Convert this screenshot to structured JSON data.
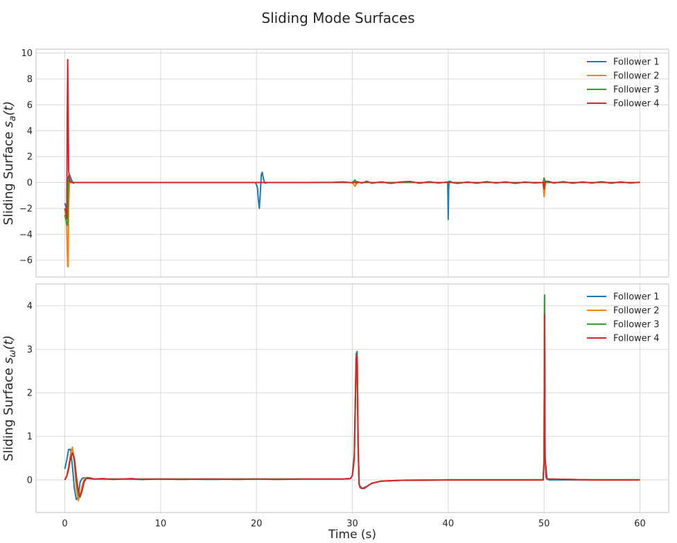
{
  "figure": {
    "title": "Sliding Mode Surfaces"
  },
  "chart_data": [
    {
      "type": "line",
      "title": "",
      "ylabel_main": "Sliding Surface ",
      "ylabel_symbol": "s",
      "ylabel_subscript": "a",
      "ylabel_arg": "(t)",
      "xlabel": "",
      "xlim": [
        -3,
        63
      ],
      "ylim": [
        -7.3,
        10.3
      ],
      "xticks": [
        0,
        10,
        20,
        30,
        40,
        50,
        60
      ],
      "yticks": [
        -6,
        -4,
        -2,
        0,
        2,
        4,
        6,
        8,
        10
      ],
      "grid": true,
      "legend_position": "top-right",
      "series": [
        {
          "name": "Follower 1",
          "color": "#1f77b4",
          "x": [
            0,
            0.1,
            0.2,
            0.3,
            0.4,
            0.5,
            0.6,
            0.7,
            0.8,
            0.9,
            1.0,
            1.2,
            1.5,
            2,
            5,
            10,
            15,
            19.9,
            20.1,
            20.2,
            20.3,
            20.4,
            20.5,
            20.6,
            20.7,
            20.8,
            20.9,
            21.1,
            21.5,
            25,
            30,
            35,
            39.8,
            39.95,
            40.0,
            40.05,
            40.1,
            40.2,
            40.4,
            45,
            50,
            55,
            60
          ],
          "y": [
            -1.6,
            -1.8,
            -2.2,
            0.2,
            0.5,
            0.6,
            0.4,
            0.2,
            0.05,
            -0.05,
            0,
            0,
            0,
            0,
            0,
            0,
            0,
            0,
            -0.4,
            -1.4,
            -2.0,
            -0.8,
            0.6,
            0.8,
            0.4,
            0.1,
            -0.05,
            0,
            0,
            0,
            0,
            0,
            0,
            0,
            -2.85,
            -0.5,
            0.1,
            0.1,
            0,
            0,
            0,
            0,
            0
          ]
        },
        {
          "name": "Follower 2",
          "color": "#ff7f0e",
          "x": [
            0,
            0.1,
            0.2,
            0.3,
            0.35,
            0.4,
            0.5,
            0.6,
            0.7,
            0.9,
            1.2,
            2,
            10,
            20,
            30,
            30.3,
            30.4,
            30.5,
            30.7,
            31,
            35,
            40,
            45,
            49.9,
            50.0,
            50.1,
            50.2,
            50.4,
            55,
            60
          ],
          "y": [
            -2.0,
            -2.5,
            -3.5,
            -6.5,
            -6.5,
            -2.0,
            0.3,
            0.1,
            0,
            0,
            0,
            0,
            0,
            0,
            0,
            -0.3,
            -0.1,
            0.05,
            0,
            0,
            0,
            0,
            0,
            0,
            -1.1,
            -0.3,
            0.1,
            0,
            0,
            0
          ]
        },
        {
          "name": "Follower 3",
          "color": "#2ca02c",
          "x": [
            0,
            0.1,
            0.2,
            0.3,
            0.35,
            0.4,
            0.5,
            0.6,
            0.8,
            1.2,
            2,
            10,
            20,
            30,
            30.2,
            30.3,
            30.4,
            30.6,
            31,
            40,
            49.9,
            50.0,
            50.1,
            50.2,
            50.4,
            55,
            60
          ],
          "y": [
            -2.5,
            -2.8,
            -3.2,
            -3.3,
            -1.0,
            0.3,
            0.2,
            0.1,
            0,
            0,
            0,
            0,
            0,
            0,
            0.15,
            0.2,
            -0.1,
            0,
            0,
            0,
            0,
            0.35,
            0.1,
            0,
            0,
            0,
            0
          ]
        },
        {
          "name": "Follower 4",
          "color": "#d62728",
          "x": [
            0,
            0.1,
            0.2,
            0.25,
            0.3,
            0.35,
            0.4,
            0.5,
            0.6,
            0.8,
            1.2,
            2,
            5,
            10,
            15,
            20,
            25,
            28,
            29,
            30,
            30.5,
            31,
            31.5,
            32,
            33,
            34,
            35,
            36,
            37,
            38,
            39,
            40,
            41,
            42,
            43,
            44,
            45,
            46,
            47,
            48,
            49,
            49.9,
            50.0,
            50.1,
            50.5,
            51,
            52,
            53,
            54,
            55,
            56,
            57,
            58,
            59,
            60
          ],
          "y": [
            -2.0,
            -2.2,
            -2.8,
            5.0,
            9.5,
            6.0,
            1.0,
            0.1,
            0,
            0,
            0,
            0,
            0,
            0,
            0,
            0,
            0,
            0.02,
            0.05,
            -0.02,
            0.06,
            -0.04,
            0.1,
            -0.05,
            0.05,
            -0.06,
            0.04,
            0.08,
            -0.05,
            0.06,
            -0.04,
            0.05,
            -0.06,
            0.04,
            -0.05,
            0.06,
            -0.04,
            0.05,
            -0.06,
            0.04,
            -0.03,
            0,
            -0.5,
            0.1,
            0.08,
            -0.04,
            0.06,
            -0.05,
            0.05,
            -0.04,
            0.06,
            -0.05,
            0.05,
            -0.04,
            0.03
          ]
        }
      ]
    },
    {
      "type": "line",
      "title": "",
      "ylabel_main": "Sliding Surface ",
      "ylabel_symbol": "s",
      "ylabel_subscript": "ω",
      "ylabel_arg": "(t)",
      "xlabel": "Time (s)",
      "xlim": [
        -3,
        63
      ],
      "ylim": [
        -0.75,
        4.5
      ],
      "xticks": [
        0,
        10,
        20,
        30,
        40,
        50,
        60
      ],
      "yticks": [
        0,
        1,
        2,
        3,
        4
      ],
      "grid": true,
      "legend_position": "top-right",
      "series": [
        {
          "name": "Follower 1",
          "color": "#1f77b4",
          "x": [
            0,
            0.2,
            0.4,
            0.6,
            0.8,
            1.0,
            1.2,
            1.4,
            1.6,
            1.8,
            2.0,
            2.4,
            3,
            4,
            6,
            8,
            10,
            15,
            20,
            25,
            29,
            29.8,
            30.0,
            30.2,
            30.4,
            30.5,
            30.6,
            30.7,
            30.8,
            31.0,
            31.5,
            32,
            33,
            35,
            40,
            45,
            49.9,
            50.0,
            50.05,
            50.1,
            50.2,
            50.5,
            55,
            60
          ],
          "y": [
            0.25,
            0.45,
            0.7,
            0.7,
            0.3,
            -0.2,
            -0.45,
            -0.4,
            -0.05,
            0.03,
            0.05,
            0.03,
            0.02,
            0.02,
            0.02,
            0.01,
            0.02,
            0.01,
            0.02,
            0.02,
            0.02,
            0.03,
            0.1,
            0.6,
            2.9,
            2.95,
            1.0,
            -0.1,
            -0.18,
            -0.2,
            -0.15,
            -0.08,
            -0.03,
            -0.01,
            0,
            0,
            0,
            0.5,
            4.2,
            0.6,
            0.05,
            0,
            0,
            0
          ]
        },
        {
          "name": "Follower 2",
          "color": "#ff7f0e",
          "x": [
            0,
            0.2,
            0.4,
            0.6,
            0.8,
            1.0,
            1.2,
            1.4,
            1.6,
            1.8,
            2.0,
            2.2,
            2.5,
            3,
            4,
            6,
            10,
            20,
            29,
            29.8,
            30.0,
            30.2,
            30.4,
            30.5,
            30.6,
            30.7,
            30.9,
            31.2,
            32,
            33,
            35,
            40,
            49.9,
            50.0,
            50.05,
            50.1,
            50.3,
            55,
            60
          ],
          "y": [
            0,
            0.1,
            0.3,
            0.6,
            0.75,
            0.4,
            -0.2,
            -0.48,
            -0.35,
            -0.15,
            0.0,
            0.05,
            0.04,
            0.02,
            0.02,
            0.02,
            0.02,
            0.02,
            0.02,
            0.03,
            0.1,
            0.5,
            2.85,
            2.9,
            0.8,
            -0.1,
            -0.18,
            -0.2,
            -0.08,
            -0.03,
            -0.01,
            0,
            0,
            0.4,
            4.1,
            0.5,
            0.02,
            0,
            0
          ]
        },
        {
          "name": "Follower 3",
          "color": "#2ca02c",
          "x": [
            0,
            0.2,
            0.4,
            0.6,
            0.8,
            1.0,
            1.2,
            1.4,
            1.6,
            1.8,
            2.0,
            2.3,
            2.6,
            3,
            4,
            6,
            10,
            20,
            29,
            29.8,
            30.0,
            30.2,
            30.4,
            30.5,
            30.6,
            30.7,
            30.9,
            31.2,
            32,
            33,
            35,
            40,
            49.9,
            50.0,
            50.05,
            50.1,
            50.3,
            55,
            60
          ],
          "y": [
            0,
            0.08,
            0.25,
            0.5,
            0.62,
            0.45,
            0.0,
            -0.3,
            -0.4,
            -0.25,
            -0.05,
            0.05,
            0.05,
            0.02,
            0.02,
            0.02,
            0.02,
            0.02,
            0.02,
            0.03,
            0.1,
            0.5,
            2.85,
            2.9,
            0.8,
            -0.1,
            -0.18,
            -0.2,
            -0.08,
            -0.03,
            -0.01,
            0,
            0,
            0.4,
            4.25,
            0.5,
            0.02,
            0,
            0
          ]
        },
        {
          "name": "Follower 4",
          "color": "#d62728",
          "x": [
            0,
            0.2,
            0.4,
            0.6,
            0.8,
            1.0,
            1.2,
            1.4,
            1.6,
            1.8,
            2.0,
            2.3,
            2.6,
            3,
            4,
            5,
            6,
            7,
            8,
            10,
            12,
            15,
            18,
            20,
            22,
            25,
            28,
            29,
            29.8,
            30.0,
            30.2,
            30.4,
            30.5,
            30.6,
            30.7,
            30.9,
            31.2,
            32,
            33,
            35,
            40,
            45,
            49.9,
            50.0,
            50.05,
            50.1,
            50.3,
            55,
            60
          ],
          "y": [
            0,
            0.08,
            0.25,
            0.5,
            0.62,
            0.5,
            0.1,
            -0.25,
            -0.38,
            -0.25,
            -0.05,
            0.05,
            0.04,
            0.02,
            0.03,
            0.01,
            0.02,
            0.03,
            0.01,
            0.02,
            0.01,
            0.02,
            0.01,
            0.02,
            0.01,
            0.02,
            0.02,
            0.02,
            0.03,
            0.1,
            0.5,
            2.8,
            2.85,
            0.8,
            -0.1,
            -0.18,
            -0.2,
            -0.08,
            -0.03,
            -0.01,
            0,
            0,
            0,
            0.4,
            3.8,
            0.5,
            0.02,
            0,
            0
          ]
        }
      ]
    }
  ]
}
